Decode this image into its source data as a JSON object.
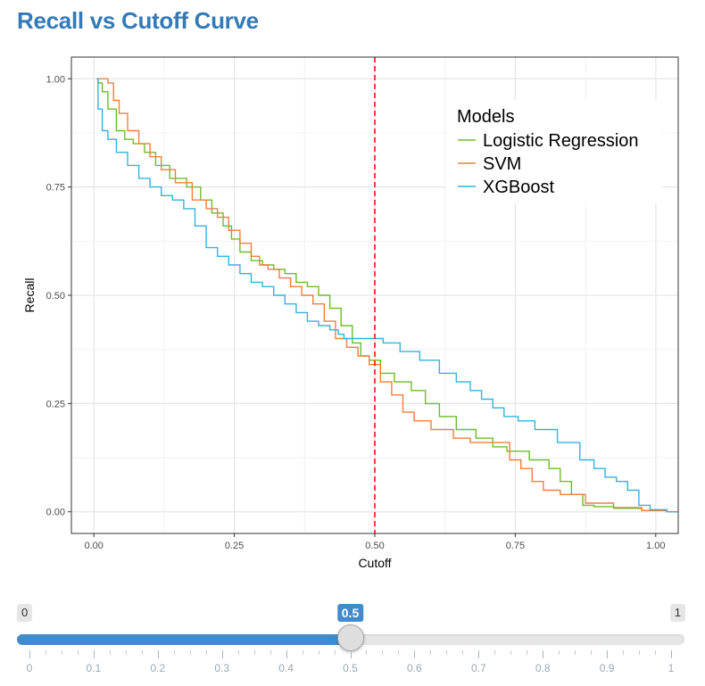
{
  "page": {
    "title": "Recall vs Cutoff Curve"
  },
  "chart_data": {
    "type": "line",
    "title": "",
    "xlabel": "Cutoff",
    "ylabel": "Recall",
    "xlim": [
      -0.04,
      1.04
    ],
    "ylim": [
      -0.05,
      1.05
    ],
    "x_ticks": [
      0,
      0.25,
      0.5,
      0.75,
      1
    ],
    "x_tick_labels": [
      "0.00",
      "0.25",
      "0.50",
      "0.75",
      "1.00"
    ],
    "y_ticks": [
      0,
      0.25,
      0.5,
      0.75,
      1
    ],
    "y_tick_labels": [
      "0.00",
      "0.25",
      "0.50",
      "0.75",
      "1.00"
    ],
    "grid": true,
    "legend": {
      "title": "Models",
      "placement": "top-right"
    },
    "vline": {
      "x": 0.5,
      "color": "#ff0000",
      "style": "dashed"
    },
    "series": [
      {
        "name": "Logistic Regression",
        "color": "#6cbd2b",
        "x": [
          0.005,
          0.01,
          0.02,
          0.03,
          0.05,
          0.06,
          0.08,
          0.1,
          0.12,
          0.15,
          0.18,
          0.2,
          0.22,
          0.24,
          0.25,
          0.27,
          0.29,
          0.31,
          0.33,
          0.35,
          0.37,
          0.39,
          0.41,
          0.43,
          0.45,
          0.47,
          0.48,
          0.5,
          0.52,
          0.55,
          0.58,
          0.6,
          0.63,
          0.66,
          0.7,
          0.72,
          0.75,
          0.8,
          0.82,
          0.84,
          0.86,
          0.88,
          0.9,
          0.95,
          1.0,
          1.04
        ],
        "y": [
          1.0,
          0.99,
          0.97,
          0.93,
          0.88,
          0.86,
          0.85,
          0.83,
          0.8,
          0.77,
          0.75,
          0.72,
          0.69,
          0.66,
          0.63,
          0.6,
          0.58,
          0.57,
          0.56,
          0.55,
          0.53,
          0.52,
          0.5,
          0.47,
          0.43,
          0.39,
          0.36,
          0.35,
          0.32,
          0.3,
          0.28,
          0.25,
          0.22,
          0.19,
          0.17,
          0.15,
          0.14,
          0.12,
          0.1,
          0.07,
          0.04,
          0.015,
          0.012,
          0.008,
          0.003,
          0.0
        ]
      },
      {
        "name": "SVM",
        "color": "#f07f3f",
        "x": [
          0.005,
          0.02,
          0.03,
          0.04,
          0.05,
          0.07,
          0.09,
          0.11,
          0.13,
          0.16,
          0.19,
          0.21,
          0.23,
          0.25,
          0.27,
          0.29,
          0.3,
          0.32,
          0.34,
          0.36,
          0.38,
          0.4,
          0.42,
          0.44,
          0.46,
          0.48,
          0.5,
          0.52,
          0.54,
          0.56,
          0.58,
          0.62,
          0.66,
          0.68,
          0.7,
          0.73,
          0.75,
          0.77,
          0.79,
          0.81,
          0.85,
          0.9,
          0.95,
          1.0,
          1.04
        ],
        "y": [
          1.0,
          1.0,
          0.99,
          0.95,
          0.92,
          0.88,
          0.85,
          0.82,
          0.79,
          0.76,
          0.72,
          0.7,
          0.68,
          0.65,
          0.62,
          0.59,
          0.57,
          0.56,
          0.54,
          0.52,
          0.5,
          0.48,
          0.44,
          0.4,
          0.38,
          0.36,
          0.34,
          0.3,
          0.27,
          0.23,
          0.21,
          0.19,
          0.17,
          0.16,
          0.16,
          0.16,
          0.12,
          0.1,
          0.07,
          0.05,
          0.04,
          0.02,
          0.01,
          0.003,
          0.0
        ]
      },
      {
        "name": "XGBoost",
        "color": "#35b2e1",
        "x": [
          0.005,
          0.01,
          0.02,
          0.03,
          0.05,
          0.07,
          0.09,
          0.11,
          0.13,
          0.15,
          0.17,
          0.19,
          0.21,
          0.23,
          0.25,
          0.27,
          0.29,
          0.31,
          0.33,
          0.35,
          0.37,
          0.39,
          0.41,
          0.43,
          0.44,
          0.45,
          0.47,
          0.5,
          0.53,
          0.56,
          0.6,
          0.63,
          0.66,
          0.68,
          0.7,
          0.72,
          0.74,
          0.77,
          0.8,
          0.85,
          0.88,
          0.9,
          0.92,
          0.94,
          0.96,
          0.98,
          1.0,
          1.04
        ],
        "y": [
          1.0,
          0.93,
          0.88,
          0.86,
          0.83,
          0.8,
          0.77,
          0.75,
          0.73,
          0.72,
          0.7,
          0.66,
          0.61,
          0.59,
          0.57,
          0.55,
          0.53,
          0.52,
          0.5,
          0.48,
          0.46,
          0.44,
          0.43,
          0.42,
          0.41,
          0.4,
          0.4,
          0.4,
          0.39,
          0.37,
          0.35,
          0.32,
          0.3,
          0.28,
          0.26,
          0.24,
          0.22,
          0.21,
          0.19,
          0.16,
          0.12,
          0.1,
          0.08,
          0.07,
          0.05,
          0.015,
          0.005,
          0.0
        ]
      }
    ]
  },
  "slider": {
    "min_label": "0",
    "max_label": "1",
    "value": 0.5,
    "value_label": "0.5",
    "min": 0,
    "max": 1,
    "grid_labels": [
      "0",
      "0.1",
      "0.2",
      "0.3",
      "0.4",
      "0.5",
      "0.6",
      "0.7",
      "0.8",
      "0.9",
      "1"
    ],
    "accent": "#428bca"
  }
}
